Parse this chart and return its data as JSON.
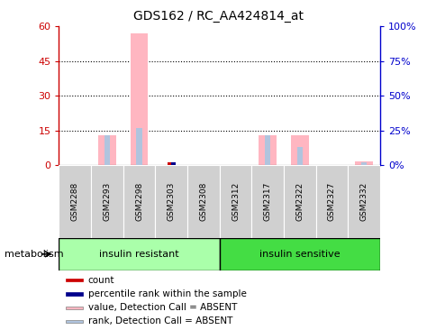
{
  "title": "GDS162 / RC_AA424814_at",
  "samples": [
    "GSM2288",
    "GSM2293",
    "GSM2298",
    "GSM2303",
    "GSM2308",
    "GSM2312",
    "GSM2317",
    "GSM2322",
    "GSM2327",
    "GSM2332"
  ],
  "group1_label": "insulin resistant",
  "group2_label": "insulin sensitive",
  "group_label": "metabolism",
  "value_absent": [
    0,
    13,
    57,
    0,
    0,
    0,
    13,
    13,
    0,
    1.5
  ],
  "rank_absent": [
    0,
    13,
    16,
    0,
    0,
    0,
    13,
    8,
    0,
    1
  ],
  "count_values": [
    0,
    0,
    0,
    1.2,
    0,
    0,
    0,
    0,
    0,
    0
  ],
  "percentile_values": [
    0,
    0,
    0,
    1.2,
    0,
    0,
    0,
    0,
    0,
    0
  ],
  "left_ylim": [
    0,
    60
  ],
  "right_ylim": [
    0,
    100
  ],
  "left_yticks": [
    0,
    15,
    30,
    45,
    60
  ],
  "right_yticks": [
    0,
    25,
    50,
    75,
    100
  ],
  "left_ytick_labels": [
    "0",
    "15",
    "30",
    "45",
    "60"
  ],
  "right_ytick_labels": [
    "0%",
    "25%",
    "50%",
    "75%",
    "100%"
  ],
  "color_value_absent": "#ffb6c1",
  "color_rank_absent": "#b0c4de",
  "color_count": "#cc0000",
  "color_percentile": "#00008b",
  "axis_color_left": "#cc0000",
  "axis_color_right": "#0000cc",
  "bg_color": "#d0d0d0",
  "group1_color": "#aaffaa",
  "group2_color": "#44dd44",
  "bar_width": 0.55,
  "rank_bar_width": 0.18,
  "count_bar_width": 0.12,
  "legend_items": [
    {
      "color": "#cc0000",
      "label": "count"
    },
    {
      "color": "#00008b",
      "label": "percentile rank within the sample"
    },
    {
      "color": "#ffb6c1",
      "label": "value, Detection Call = ABSENT"
    },
    {
      "color": "#b0c4de",
      "label": "rank, Detection Call = ABSENT"
    }
  ]
}
